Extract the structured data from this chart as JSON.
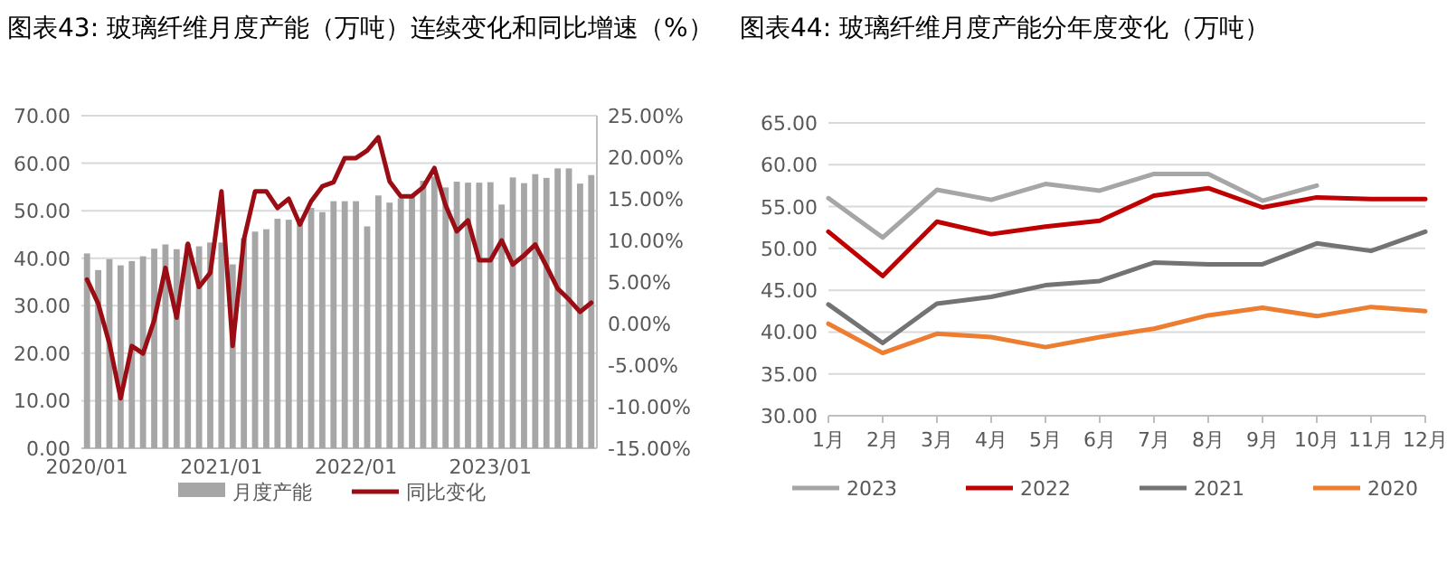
{
  "chart_data": [
    {
      "type": "bar",
      "title": "图表43:  玻璃纤维月度产能（万吨）连续变化和同比增速（%）",
      "categories": [
        "2020/01",
        null,
        null,
        null,
        null,
        null,
        null,
        null,
        null,
        null,
        null,
        null,
        "2021/01",
        null,
        null,
        null,
        null,
        null,
        null,
        null,
        null,
        null,
        null,
        null,
        "2022/01",
        null,
        null,
        null,
        null,
        null,
        null,
        null,
        null,
        null,
        null,
        null,
        "2023/01",
        null,
        null,
        null,
        null,
        null,
        null,
        null,
        null,
        null
      ],
      "series": [
        {
          "name": "月度产能",
          "type": "bar",
          "color": "#a6a6a6",
          "values": [
            41,
            37.5,
            39.8,
            38.5,
            39.4,
            40.4,
            42,
            42.9,
            41.9,
            43,
            42.5,
            43.3,
            43.3,
            38.7,
            44.2,
            45.6,
            46.1,
            48.3,
            48.1,
            48.1,
            50.6,
            49.7,
            52,
            52,
            52,
            46.7,
            53.2,
            51.7,
            52.6,
            53.3,
            56.3,
            57.2,
            54.9,
            56.1,
            55.9,
            55.9,
            56,
            51.3,
            57,
            55.8,
            57.7,
            56.9,
            58.9,
            58.9,
            55.7,
            57.5
          ]
        },
        {
          "name": "同比变化",
          "type": "line",
          "axis": "y2",
          "color": "#9b0d14",
          "values": [
            5.3,
            2.4,
            -2.4,
            -9.0,
            -2.7,
            -3.6,
            0.4,
            6.7,
            0.7,
            9.6,
            4.4,
            6.1,
            15.9,
            -2.7,
            10.1,
            15.9,
            15.9,
            13.9,
            15.0,
            11.9,
            14.7,
            16.5,
            17.0,
            19.9,
            19.9,
            20.8,
            22.4,
            17.1,
            15.3,
            15.3,
            16.4,
            18.7,
            14.2,
            11.1,
            12.4,
            7.6,
            7.6,
            10.0,
            7.1,
            8.2,
            9.5,
            6.9,
            4.2,
            2.9,
            1.4,
            2.5
          ]
        }
      ],
      "ylim": [
        0,
        70
      ],
      "yticks": [
        {
          "value": 0,
          "label": "0.00"
        },
        {
          "value": 10,
          "label": "10.00"
        },
        {
          "value": 20,
          "label": "20.00"
        },
        {
          "value": 30,
          "label": "30.00"
        },
        {
          "value": 40,
          "label": "40.00"
        },
        {
          "value": 50,
          "label": "50.00"
        },
        {
          "value": 60,
          "label": "60.00"
        },
        {
          "value": 70,
          "label": "70.00"
        }
      ],
      "y2lim": [
        -15,
        25
      ],
      "y2ticks": [
        {
          "value": -15,
          "label": "-15.00%"
        },
        {
          "value": -10,
          "label": "-10.00%"
        },
        {
          "value": -5,
          "label": "-5.00%"
        },
        {
          "value": 0,
          "label": "0.00%"
        },
        {
          "value": 5,
          "label": "5.00%"
        },
        {
          "value": 10,
          "label": "10.00%"
        },
        {
          "value": 15,
          "label": "15.00%"
        },
        {
          "value": 20,
          "label": "20.00%"
        },
        {
          "value": 25,
          "label": "25.00%"
        }
      ],
      "grid": "y",
      "legend": "bottom"
    },
    {
      "type": "line",
      "title": "图表44:  玻璃纤维月度产能分年度变化（万吨）",
      "categories": [
        "1月",
        "2月",
        "3月",
        "4月",
        "5月",
        "6月",
        "7月",
        "8月",
        "9月",
        "10月",
        "11月",
        "12月"
      ],
      "series": [
        {
          "name": "2023",
          "color": "#a6a6a6",
          "values": [
            56,
            51.3,
            57,
            55.8,
            57.7,
            56.9,
            58.9,
            58.9,
            55.7,
            57.5,
            null,
            null
          ]
        },
        {
          "name": "2022",
          "color": "#c00000",
          "values": [
            52,
            46.7,
            53.2,
            51.7,
            52.6,
            53.3,
            56.3,
            57.2,
            54.9,
            56.1,
            55.9,
            55.9
          ]
        },
        {
          "name": "2021",
          "color": "#737373",
          "values": [
            43.3,
            38.7,
            43.4,
            44.2,
            45.6,
            46.1,
            48.3,
            48.1,
            48.1,
            50.6,
            49.7,
            52
          ]
        },
        {
          "name": "2020",
          "color": "#ed7d31",
          "values": [
            41,
            37.5,
            39.8,
            39.4,
            38.2,
            39.4,
            40.4,
            42,
            42.9,
            41.9,
            43,
            42.5
          ]
        }
      ],
      "ylim": [
        30,
        65
      ],
      "yticks": [
        {
          "value": 30,
          "label": "30.00"
        },
        {
          "value": 35,
          "label": "35.00"
        },
        {
          "value": 40,
          "label": "40.00"
        },
        {
          "value": 45,
          "label": "45.00"
        },
        {
          "value": 50,
          "label": "50.00"
        },
        {
          "value": 55,
          "label": "55.00"
        },
        {
          "value": 60,
          "label": "60.00"
        },
        {
          "value": 65,
          "label": "65.00"
        }
      ],
      "grid": "y",
      "legend": "bottom"
    }
  ]
}
